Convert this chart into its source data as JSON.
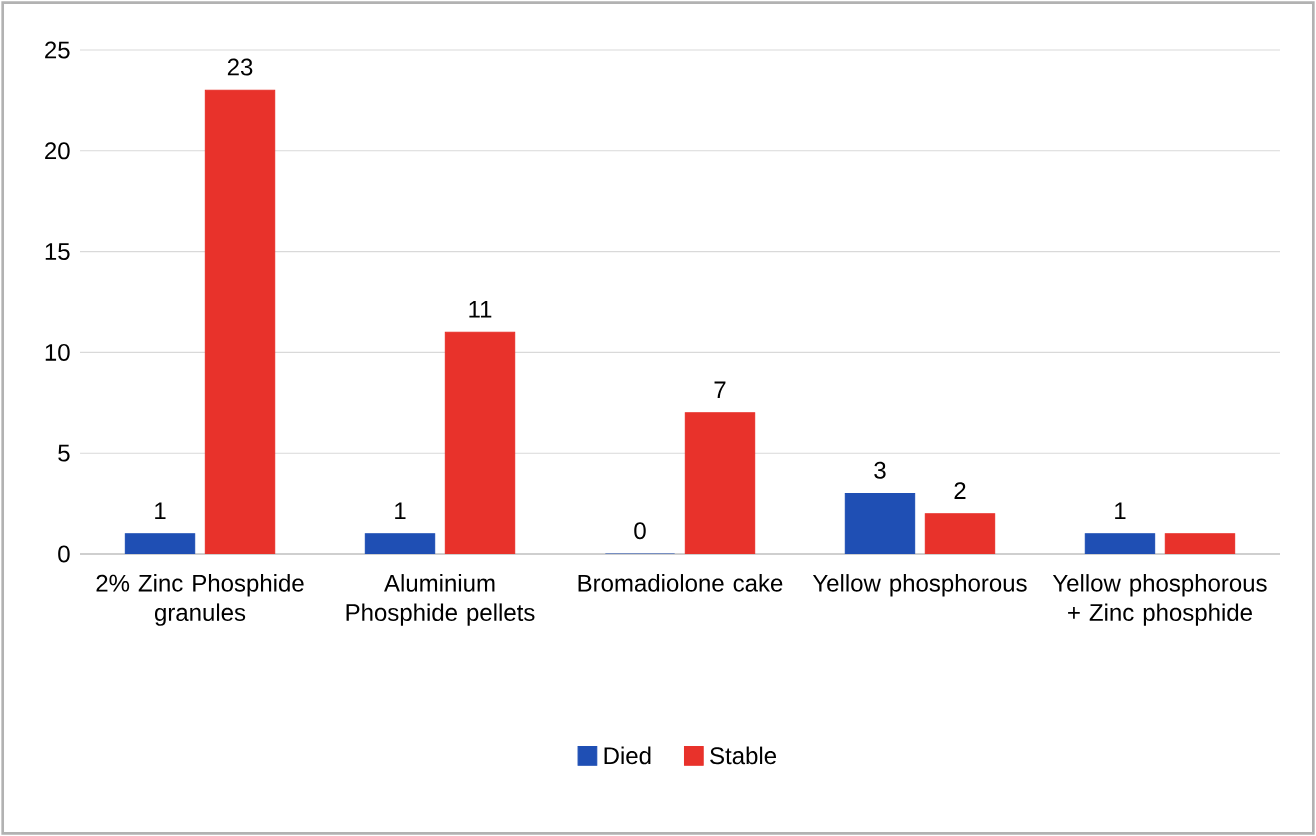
{
  "chart_data": {
    "type": "bar",
    "categories": [
      "2% Zinc Phosphide granules",
      "Aluminium Phosphide pellets",
      "Bromadiolone cake",
      "Yellow phosphorous",
      "Yellow phosphorous + Zinc phosphide"
    ],
    "series": [
      {
        "name": "Died",
        "color": "#1f4fb4",
        "values": [
          1,
          1,
          0,
          3,
          1
        ],
        "value_labels": [
          "1",
          "1",
          "0",
          "3",
          "1"
        ]
      },
      {
        "name": "Stable",
        "color": "#e8322b",
        "values": [
          23,
          11,
          7,
          2,
          1
        ],
        "value_labels": [
          "23",
          "11",
          "7",
          "2",
          null
        ]
      }
    ],
    "ylim": [
      0,
      25
    ],
    "yticks": [
      0,
      5,
      10,
      15,
      20,
      25
    ],
    "grid": "y",
    "legend": "bottom"
  }
}
